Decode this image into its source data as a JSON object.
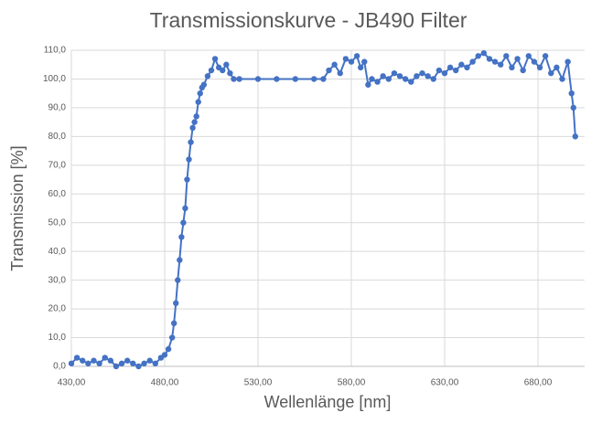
{
  "chart_data": {
    "type": "line",
    "title": "Transmissionskurve - JB490 Filter",
    "x_label": "Wellenlänge [nm]",
    "y_label": "Transmission [%]",
    "x": [
      430,
      433,
      436,
      439,
      442,
      445,
      448,
      451,
      454,
      457,
      460,
      463,
      466,
      469,
      472,
      475,
      478,
      480,
      482,
      484,
      485,
      486,
      487,
      488,
      489,
      490,
      491,
      492,
      493,
      494,
      495,
      496,
      497,
      498,
      499,
      500,
      501,
      503,
      505,
      507,
      509,
      511,
      513,
      515,
      517,
      520,
      530,
      540,
      550,
      560,
      565,
      568,
      571,
      574,
      577,
      580,
      583,
      585,
      587,
      589,
      591,
      594,
      597,
      600,
      603,
      606,
      609,
      612,
      615,
      618,
      621,
      624,
      627,
      630,
      633,
      636,
      639,
      642,
      645,
      648,
      651,
      654,
      657,
      660,
      663,
      666,
      669,
      672,
      675,
      678,
      681,
      684,
      687,
      690,
      693,
      696,
      698,
      699,
      700
    ],
    "series": [
      {
        "color": "#4472c4",
        "values": [
          1,
          3,
          2,
          1,
          2,
          1,
          3,
          2,
          0,
          1,
          2,
          1,
          0,
          1,
          2,
          1,
          3,
          4,
          6,
          10,
          15,
          22,
          30,
          37,
          45,
          50,
          55,
          65,
          72,
          78,
          83,
          85,
          87,
          92,
          95,
          97,
          98,
          101,
          103,
          107,
          104,
          103,
          105,
          102,
          100,
          100,
          100,
          100,
          100,
          100,
          100,
          103,
          105,
          102,
          107,
          106,
          108,
          104,
          106,
          98,
          100,
          99,
          101,
          100,
          102,
          101,
          100,
          99,
          101,
          102,
          101,
          100,
          103,
          102,
          104,
          103,
          105,
          104,
          106,
          108,
          109,
          107,
          106,
          105,
          108,
          104,
          107,
          103,
          108,
          106,
          104,
          108,
          102,
          104,
          100,
          106,
          95,
          90,
          80
        ]
      }
    ],
    "xlim": [
      430,
      705
    ],
    "xticks": [
      {
        "value": 430,
        "label": "430,00"
      },
      {
        "value": 480,
        "label": "480,00"
      },
      {
        "value": 530,
        "label": "530,00"
      },
      {
        "value": 580,
        "label": "580,00"
      },
      {
        "value": 630,
        "label": "630,00"
      },
      {
        "value": 680,
        "label": "680,00"
      }
    ],
    "ylim": [
      0,
      110
    ],
    "yticks": [
      {
        "value": 0,
        "label": "0,0"
      },
      {
        "value": 10,
        "label": "10,0"
      },
      {
        "value": 20,
        "label": "20,0"
      },
      {
        "value": 30,
        "label": "30,0"
      },
      {
        "value": 40,
        "label": "40,0"
      },
      {
        "value": 50,
        "label": "50,0"
      },
      {
        "value": 60,
        "label": "60,0"
      },
      {
        "value": 70,
        "label": "70,0"
      },
      {
        "value": 80,
        "label": "80,0"
      },
      {
        "value": 90,
        "label": "90,0"
      },
      {
        "value": 100,
        "label": "100,0"
      },
      {
        "value": 110,
        "label": "110,0"
      }
    ],
    "grid": true,
    "markers": true
  }
}
